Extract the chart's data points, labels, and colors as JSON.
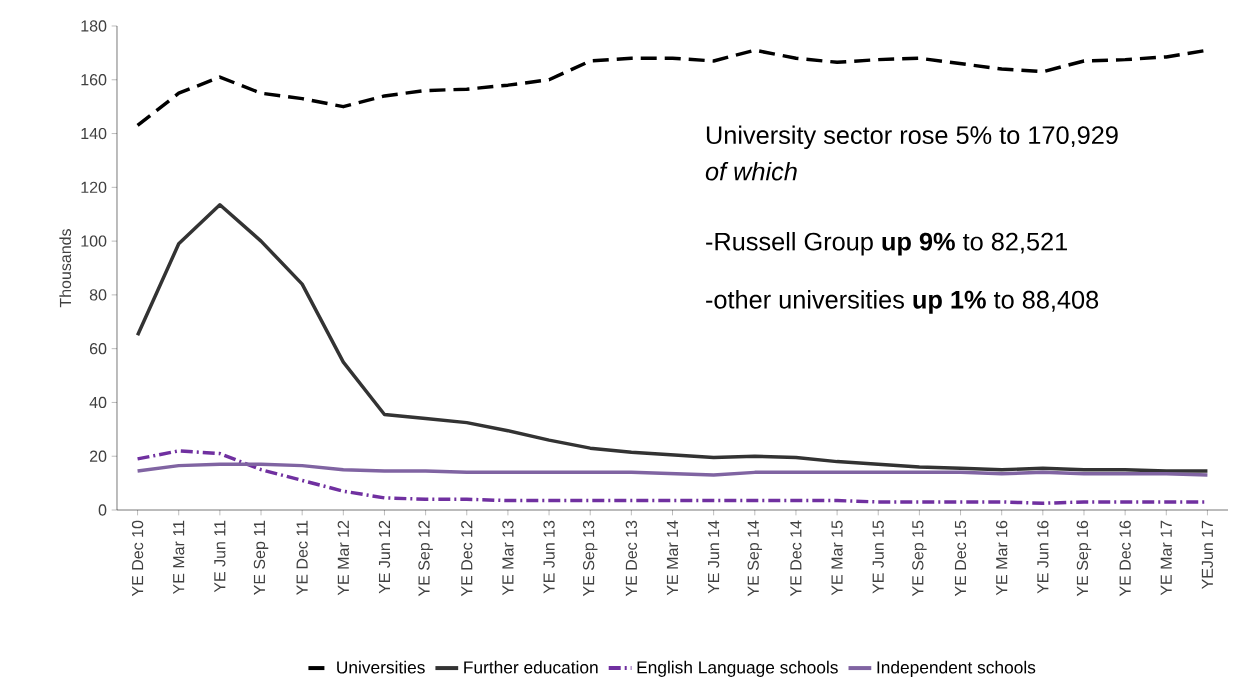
{
  "chart_data": {
    "type": "line",
    "ylabel": "Thousands",
    "categories": [
      "YE Dec 10",
      "YE Mar 11",
      "YE Jun 11",
      "YE Sep 11",
      "YE Dec 11",
      "YE Mar 12",
      "YE Jun 12",
      "YE Sep 12",
      "YE Dec 12",
      "YE Mar 13",
      "YE Jun 13",
      "YE Sep 13",
      "YE Dec 13",
      "YE Mar 14",
      "YE Jun 14",
      "YE Sep 14",
      "YE Dec 14",
      "YE Mar 15",
      "YE Jun 15",
      "YE Sep 15",
      "YE Dec 15",
      "YE Mar 16",
      "YE Jun 16",
      "YE Sep 16",
      "YE Dec 16",
      "YE Mar 17",
      "YEJun 17"
    ],
    "series": [
      {
        "name": "Universities",
        "color": "#000000",
        "line_style": "dashed",
        "values": [
          143,
          155,
          161,
          155,
          153,
          150,
          154,
          156,
          156.5,
          158,
          160,
          167,
          168,
          168,
          167,
          171,
          168,
          166.5,
          167.5,
          168,
          166,
          164,
          163,
          167,
          167.5,
          168.5,
          171
        ]
      },
      {
        "name": "Further education",
        "color": "#333333",
        "line_style": "solid",
        "values": [
          65,
          99,
          113.5,
          100,
          84,
          55,
          35.5,
          34,
          32.5,
          29.5,
          26,
          23,
          21.5,
          20.5,
          19.5,
          20,
          19.5,
          18,
          17,
          16,
          15.5,
          15,
          15.5,
          15,
          15,
          14.5,
          14.5
        ]
      },
      {
        "name": "English Language schools",
        "color": "#7030a0",
        "line_style": "dashdot",
        "values": [
          19,
          22,
          21,
          15,
          11,
          7,
          4.5,
          4,
          4,
          3.5,
          3.5,
          3.5,
          3.5,
          3.5,
          3.5,
          3.5,
          3.5,
          3.5,
          3,
          3,
          3,
          3,
          2.5,
          3,
          3,
          3,
          3
        ]
      },
      {
        "name": "Independent schools",
        "color": "#8064a2",
        "line_style": "solid",
        "values": [
          14.5,
          16.5,
          17,
          17,
          16.5,
          15,
          14.5,
          14.5,
          14,
          14,
          14,
          14,
          14,
          13.5,
          13,
          14,
          14,
          14,
          14,
          14,
          14,
          13.5,
          14,
          13.5,
          13.5,
          13.5,
          13
        ]
      }
    ],
    "ylim": [
      0,
      180
    ],
    "yticks": [
      0,
      20,
      40,
      60,
      80,
      100,
      120,
      140,
      160,
      180
    ],
    "annotations": [
      "University sector rose 5% to 170,929",
      "of which",
      "-Russell Group **up 9%** to 82,521",
      "-other universities **up 1%** to 88,408"
    ],
    "legend": "bottom",
    "marker": "none",
    "grid": false
  }
}
